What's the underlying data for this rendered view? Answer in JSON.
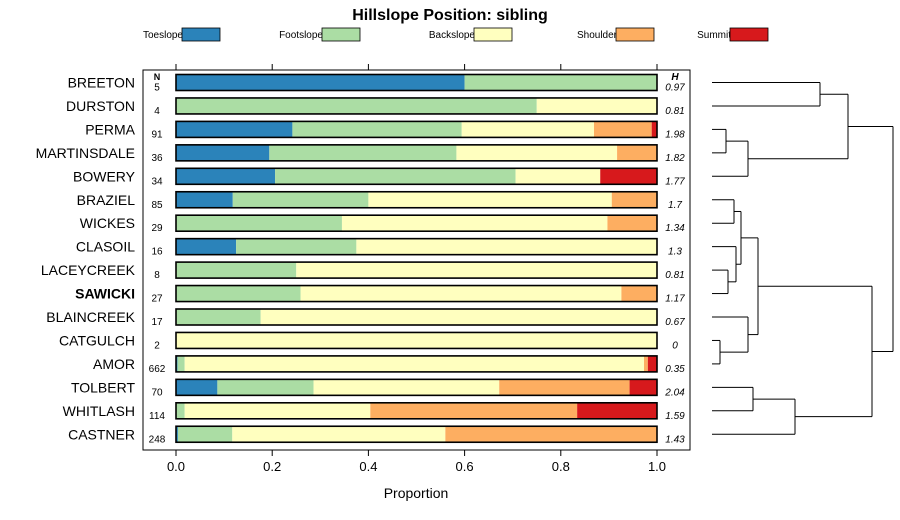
{
  "chart_data": {
    "type": "bar",
    "stacked": true,
    "orientation": "horizontal",
    "title": "Hillslope Position: sibling",
    "xlabel": "Proportion",
    "xlim": [
      0,
      1
    ],
    "xticks": [
      "0.0",
      "0.2",
      "0.4",
      "0.6",
      "0.8",
      "1.0"
    ],
    "n_header": "N",
    "h_header": "H",
    "highlight": "SAWICKI",
    "legend_position": "top",
    "series": [
      {
        "name": "Toeslope",
        "color": "#2b83ba"
      },
      {
        "name": "Footslope",
        "color": "#abdda4"
      },
      {
        "name": "Backslope",
        "color": "#ffffbf"
      },
      {
        "name": "Shoulder",
        "color": "#fdae61"
      },
      {
        "name": "Summit",
        "color": "#d7191c"
      }
    ],
    "rows": [
      {
        "name": "BREETON",
        "n": "5",
        "h": "0.97",
        "values": [
          0.6,
          0.4,
          0,
          0,
          0
        ]
      },
      {
        "name": "DURSTON",
        "n": "4",
        "h": "0.81",
        "values": [
          0,
          0.75,
          0.25,
          0,
          0
        ]
      },
      {
        "name": "PERMA",
        "n": "91",
        "h": "1.98",
        "values": [
          0.242,
          0.352,
          0.275,
          0.12,
          0.011
        ]
      },
      {
        "name": "MARTINSDALE",
        "n": "36",
        "h": "1.82",
        "values": [
          0.194,
          0.389,
          0.334,
          0.083,
          0
        ]
      },
      {
        "name": "BOWERY",
        "n": "34",
        "h": "1.77",
        "values": [
          0.206,
          0.5,
          0.176,
          0,
          0.118
        ]
      },
      {
        "name": "BRAZIEL",
        "n": "85",
        "h": "1.7",
        "values": [
          0.118,
          0.282,
          0.506,
          0.094,
          0
        ]
      },
      {
        "name": "WICKES",
        "n": "29",
        "h": "1.34",
        "values": [
          0,
          0.345,
          0.552,
          0.103,
          0
        ]
      },
      {
        "name": "CLASOIL",
        "n": "16",
        "h": "1.3",
        "values": [
          0.125,
          0.25,
          0.625,
          0,
          0
        ]
      },
      {
        "name": "LACEYCREEK",
        "n": "8",
        "h": "0.81",
        "values": [
          0,
          0.25,
          0.75,
          0,
          0
        ]
      },
      {
        "name": "SAWICKI",
        "n": "27",
        "h": "1.17",
        "values": [
          0,
          0.259,
          0.667,
          0.074,
          0
        ]
      },
      {
        "name": "BLAINCREEK",
        "n": "17",
        "h": "0.67",
        "values": [
          0,
          0.176,
          0.824,
          0,
          0
        ]
      },
      {
        "name": "CATGULCH",
        "n": "2",
        "h": "0",
        "values": [
          0,
          0,
          1,
          0,
          0
        ]
      },
      {
        "name": "AMOR",
        "n": "662",
        "h": "0.35",
        "values": [
          0.003,
          0.015,
          0.955,
          0.008,
          0.019
        ]
      },
      {
        "name": "TOLBERT",
        "n": "70",
        "h": "2.04",
        "values": [
          0.086,
          0.2,
          0.386,
          0.271,
          0.057
        ]
      },
      {
        "name": "WHITLASH",
        "n": "114",
        "h": "1.59",
        "values": [
          0,
          0.018,
          0.386,
          0.43,
          0.166
        ]
      },
      {
        "name": "CASTNER",
        "n": "248",
        "h": "1.43",
        "values": [
          0.004,
          0.113,
          0.443,
          0.44,
          0
        ]
      }
    ]
  }
}
